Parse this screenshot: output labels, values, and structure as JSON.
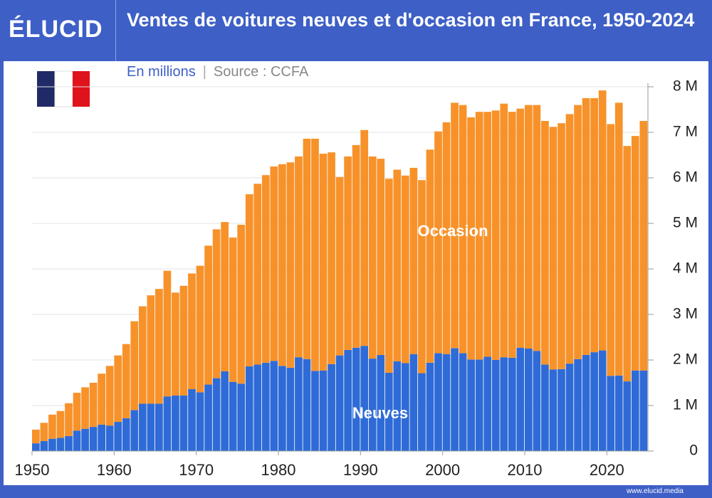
{
  "logo": "ÉLUCID",
  "footer": "www.elucid.media",
  "chart_data": {
    "type": "stacked-bar",
    "title": "Ventes de voitures neuves et d'occasion en France, 1950-2024",
    "subtitle": "En millions",
    "source": "Source : CCFA",
    "x": [
      1950,
      1951,
      1952,
      1953,
      1954,
      1955,
      1956,
      1957,
      1958,
      1959,
      1960,
      1961,
      1962,
      1963,
      1964,
      1965,
      1966,
      1967,
      1968,
      1969,
      1970,
      1971,
      1972,
      1973,
      1974,
      1975,
      1976,
      1977,
      1978,
      1979,
      1980,
      1981,
      1982,
      1983,
      1984,
      1985,
      1986,
      1987,
      1988,
      1989,
      1990,
      1991,
      1992,
      1993,
      1994,
      1995,
      1996,
      1997,
      1998,
      1999,
      2000,
      2001,
      2002,
      2003,
      2004,
      2005,
      2006,
      2007,
      2008,
      2009,
      2010,
      2011,
      2012,
      2013,
      2014,
      2015,
      2016,
      2017,
      2018,
      2019,
      2020,
      2021,
      2022,
      2023,
      2024
    ],
    "series": [
      {
        "name": "Neuves",
        "color": "#2f6bd6",
        "values": [
          0.17,
          0.22,
          0.27,
          0.29,
          0.33,
          0.45,
          0.49,
          0.53,
          0.58,
          0.56,
          0.64,
          0.72,
          0.9,
          1.04,
          1.04,
          1.04,
          1.2,
          1.22,
          1.22,
          1.36,
          1.29,
          1.46,
          1.6,
          1.75,
          1.52,
          1.48,
          1.86,
          1.9,
          1.94,
          1.98,
          1.87,
          1.83,
          2.06,
          2.02,
          1.76,
          1.77,
          1.91,
          2.1,
          2.22,
          2.27,
          2.31,
          2.03,
          2.11,
          1.72,
          1.97,
          1.93,
          2.13,
          1.71,
          1.94,
          2.15,
          2.13,
          2.26,
          2.15,
          2.01,
          2.01,
          2.07,
          2.0,
          2.06,
          2.05,
          2.27,
          2.25,
          2.2,
          1.9,
          1.79,
          1.8,
          1.92,
          2.02,
          2.11,
          2.17,
          2.21,
          1.65,
          1.66,
          1.53,
          1.77,
          1.77
        ]
      },
      {
        "name": "Occasion",
        "color": "#f7922a",
        "values": [
          0.3,
          0.4,
          0.53,
          0.59,
          0.72,
          0.83,
          0.91,
          0.97,
          1.12,
          1.31,
          1.46,
          1.63,
          1.95,
          2.14,
          2.38,
          2.52,
          2.76,
          2.26,
          2.41,
          2.54,
          2.78,
          3.05,
          3.27,
          3.28,
          3.17,
          3.49,
          3.78,
          3.97,
          4.12,
          4.27,
          4.43,
          4.51,
          4.41,
          4.84,
          5.1,
          4.76,
          4.65,
          3.92,
          4.25,
          4.45,
          4.74,
          4.44,
          4.31,
          4.26,
          4.21,
          4.12,
          4.09,
          4.24,
          4.68,
          4.87,
          5.09,
          5.39,
          5.45,
          5.32,
          5.44,
          5.38,
          5.48,
          5.57,
          5.4,
          5.25,
          5.35,
          5.4,
          5.35,
          5.33,
          5.4,
          5.48,
          5.58,
          5.64,
          5.58,
          5.71,
          5.53,
          5.99,
          5.17,
          5.15,
          5.48
        ]
      }
    ],
    "xlim": [
      1950,
      2025
    ],
    "xticks": [
      1950,
      1960,
      1970,
      1980,
      1990,
      2000,
      2010,
      2020
    ],
    "ylim": [
      0,
      8
    ],
    "yticks": [
      0,
      {
        "value": 1,
        "label": "1 M"
      },
      {
        "value": 2,
        "label": "2 M"
      },
      {
        "value": 3,
        "label": "3 M"
      },
      {
        "value": 4,
        "label": "4 M"
      },
      {
        "value": 5,
        "label": "5 M"
      },
      {
        "value": 6,
        "label": "6 M"
      },
      {
        "value": 7,
        "label": "7 M"
      },
      {
        "value": 8,
        "label": "8 M"
      }
    ],
    "grid": true
  }
}
